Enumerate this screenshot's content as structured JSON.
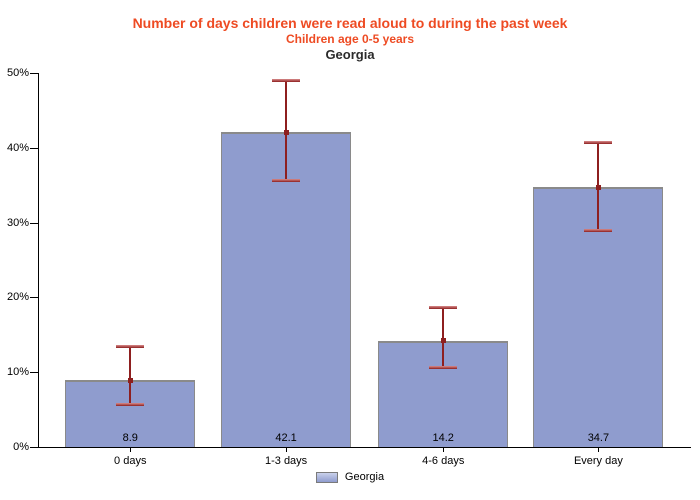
{
  "chart_data": {
    "type": "bar",
    "title": "Number of days children were read aloud to during the past week",
    "subtitle": "Children age 0-5 years",
    "region": "Georgia",
    "categories": [
      "0 days",
      "1-3 days",
      "4-6 days",
      "Every day"
    ],
    "series": [
      {
        "name": "Georgia",
        "values": [
          8.9,
          42.1,
          14.2,
          34.7
        ]
      }
    ],
    "error_bars": [
      {
        "low": 5.7,
        "high": 13.5
      },
      {
        "low": 35.7,
        "high": 49.0
      },
      {
        "low": 10.7,
        "high": 18.7
      },
      {
        "low": 29.0,
        "high": 40.8
      }
    ],
    "ylim": [
      0,
      50
    ],
    "ytick_labels": [
      "0%",
      "10%",
      "20%",
      "30%",
      "40%",
      "50%"
    ],
    "xlabel": "",
    "ylabel": "",
    "grid": false,
    "legend": {
      "position": "bottom",
      "label": "Georgia"
    },
    "colors": {
      "title": "#EE4B23",
      "subtitle": "#EE4B23",
      "bar_fill": "#8F9CCE",
      "bar_border": "#8A8A8A",
      "error_bar": "#8E1F1F",
      "error_bar_cap": "#A83434",
      "axis": "#000000"
    }
  }
}
